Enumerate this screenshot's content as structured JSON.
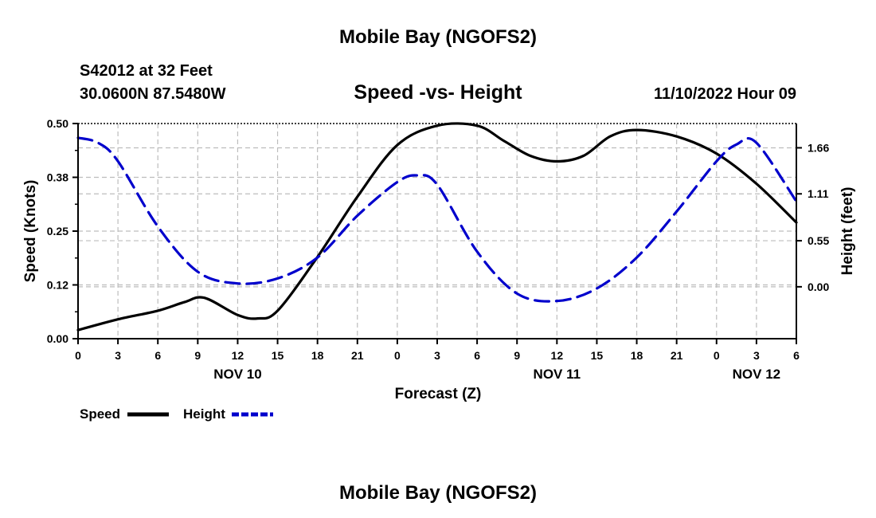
{
  "page": {
    "title": "Mobile Bay (NGOFS2)",
    "footer_title": "Mobile Bay (NGOFS2)"
  },
  "header": {
    "station": "S42012 at 32 Feet",
    "location": "30.0600N  87.5480W",
    "date": "11/10/2022 Hour 09"
  },
  "chart_data": {
    "type": "line",
    "title": "Speed -vs- Height",
    "xlabel": "Forecast (Z)",
    "ylabel": "Speed (Knots)",
    "y2label": "Height (feet)",
    "x_unit": "hours from 2022-11-10 00Z",
    "xlim": [
      0,
      54
    ],
    "ylim": [
      0,
      0.5
    ],
    "y2lim": [
      -0.62,
      1.95
    ],
    "x_tick_values": [
      0,
      3,
      6,
      9,
      12,
      15,
      18,
      21,
      24,
      27,
      30,
      33,
      36,
      39,
      42,
      45,
      48,
      51,
      54
    ],
    "x_tick_labels": [
      "0",
      "3",
      "6",
      "9",
      "12",
      "15",
      "18",
      "21",
      "0",
      "3",
      "6",
      "9",
      "12",
      "15",
      "18",
      "21",
      "0",
      "3",
      "6"
    ],
    "day_labels": [
      {
        "x": 12,
        "label": "NOV 10"
      },
      {
        "x": 36,
        "label": "NOV 11"
      },
      {
        "x": 51,
        "label": "NOV 12"
      }
    ],
    "y_ticks": [
      0.0,
      0.125,
      0.25,
      0.375,
      0.5
    ],
    "y_tick_labels": [
      "0.00",
      "0.12",
      "0.25",
      "0.38",
      "0.50"
    ],
    "y2_ticks": [
      0.0,
      0.55,
      1.11,
      1.66
    ],
    "y2_tick_labels": [
      "0.00",
      "0.55",
      "1.11",
      "1.66"
    ],
    "grid": true,
    "legend_position": "bottom-left",
    "series": [
      {
        "name": "Speed",
        "axis": "left",
        "color": "#000000",
        "style": "solid",
        "x": [
          0,
          3,
          6,
          8,
          9.5,
          12,
          13.5,
          15,
          18,
          21,
          24,
          27,
          30,
          32,
          34,
          36,
          38,
          40,
          42,
          45,
          48,
          51,
          54
        ],
        "values": [
          0.02,
          0.045,
          0.065,
          0.085,
          0.095,
          0.055,
          0.047,
          0.065,
          0.19,
          0.33,
          0.45,
          0.495,
          0.495,
          0.46,
          0.425,
          0.412,
          0.425,
          0.47,
          0.485,
          0.47,
          0.43,
          0.36,
          0.27
        ]
      },
      {
        "name": "Height",
        "axis": "right",
        "color": "#0000cc",
        "style": "dashed",
        "x": [
          0,
          1.5,
          3,
          6,
          9,
          12,
          15,
          18,
          21,
          24,
          25.5,
          27,
          30,
          33,
          36,
          39,
          42,
          45,
          48,
          49.5,
          51,
          54
        ],
        "values": [
          1.78,
          1.72,
          1.5,
          0.72,
          0.18,
          0.04,
          0.1,
          0.35,
          0.85,
          1.25,
          1.33,
          1.22,
          0.42,
          -0.08,
          -0.17,
          -0.02,
          0.35,
          0.9,
          1.5,
          1.7,
          1.72,
          1.02
        ]
      }
    ]
  },
  "legend": {
    "speed_label": "Speed",
    "height_label": "Height"
  }
}
